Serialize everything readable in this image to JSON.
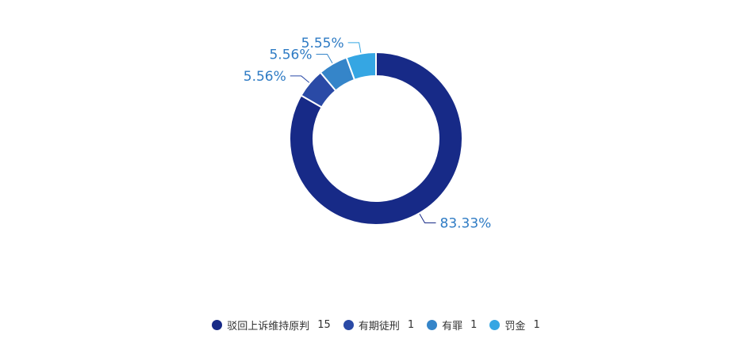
{
  "chart_data": {
    "type": "pie",
    "variant": "donut",
    "categories": [
      "驳回上诉维持原判",
      "有期徒刑",
      "有罪",
      "罚金"
    ],
    "values": [
      15,
      1,
      1,
      1
    ],
    "percent_labels": [
      "83.33%",
      "5.56%",
      "5.56%",
      "5.55%"
    ],
    "colors": [
      "#172a87",
      "#2a4aa6",
      "#3585c9",
      "#35a6e3"
    ],
    "legend_position": "bottom",
    "start": "top, clockwise"
  }
}
